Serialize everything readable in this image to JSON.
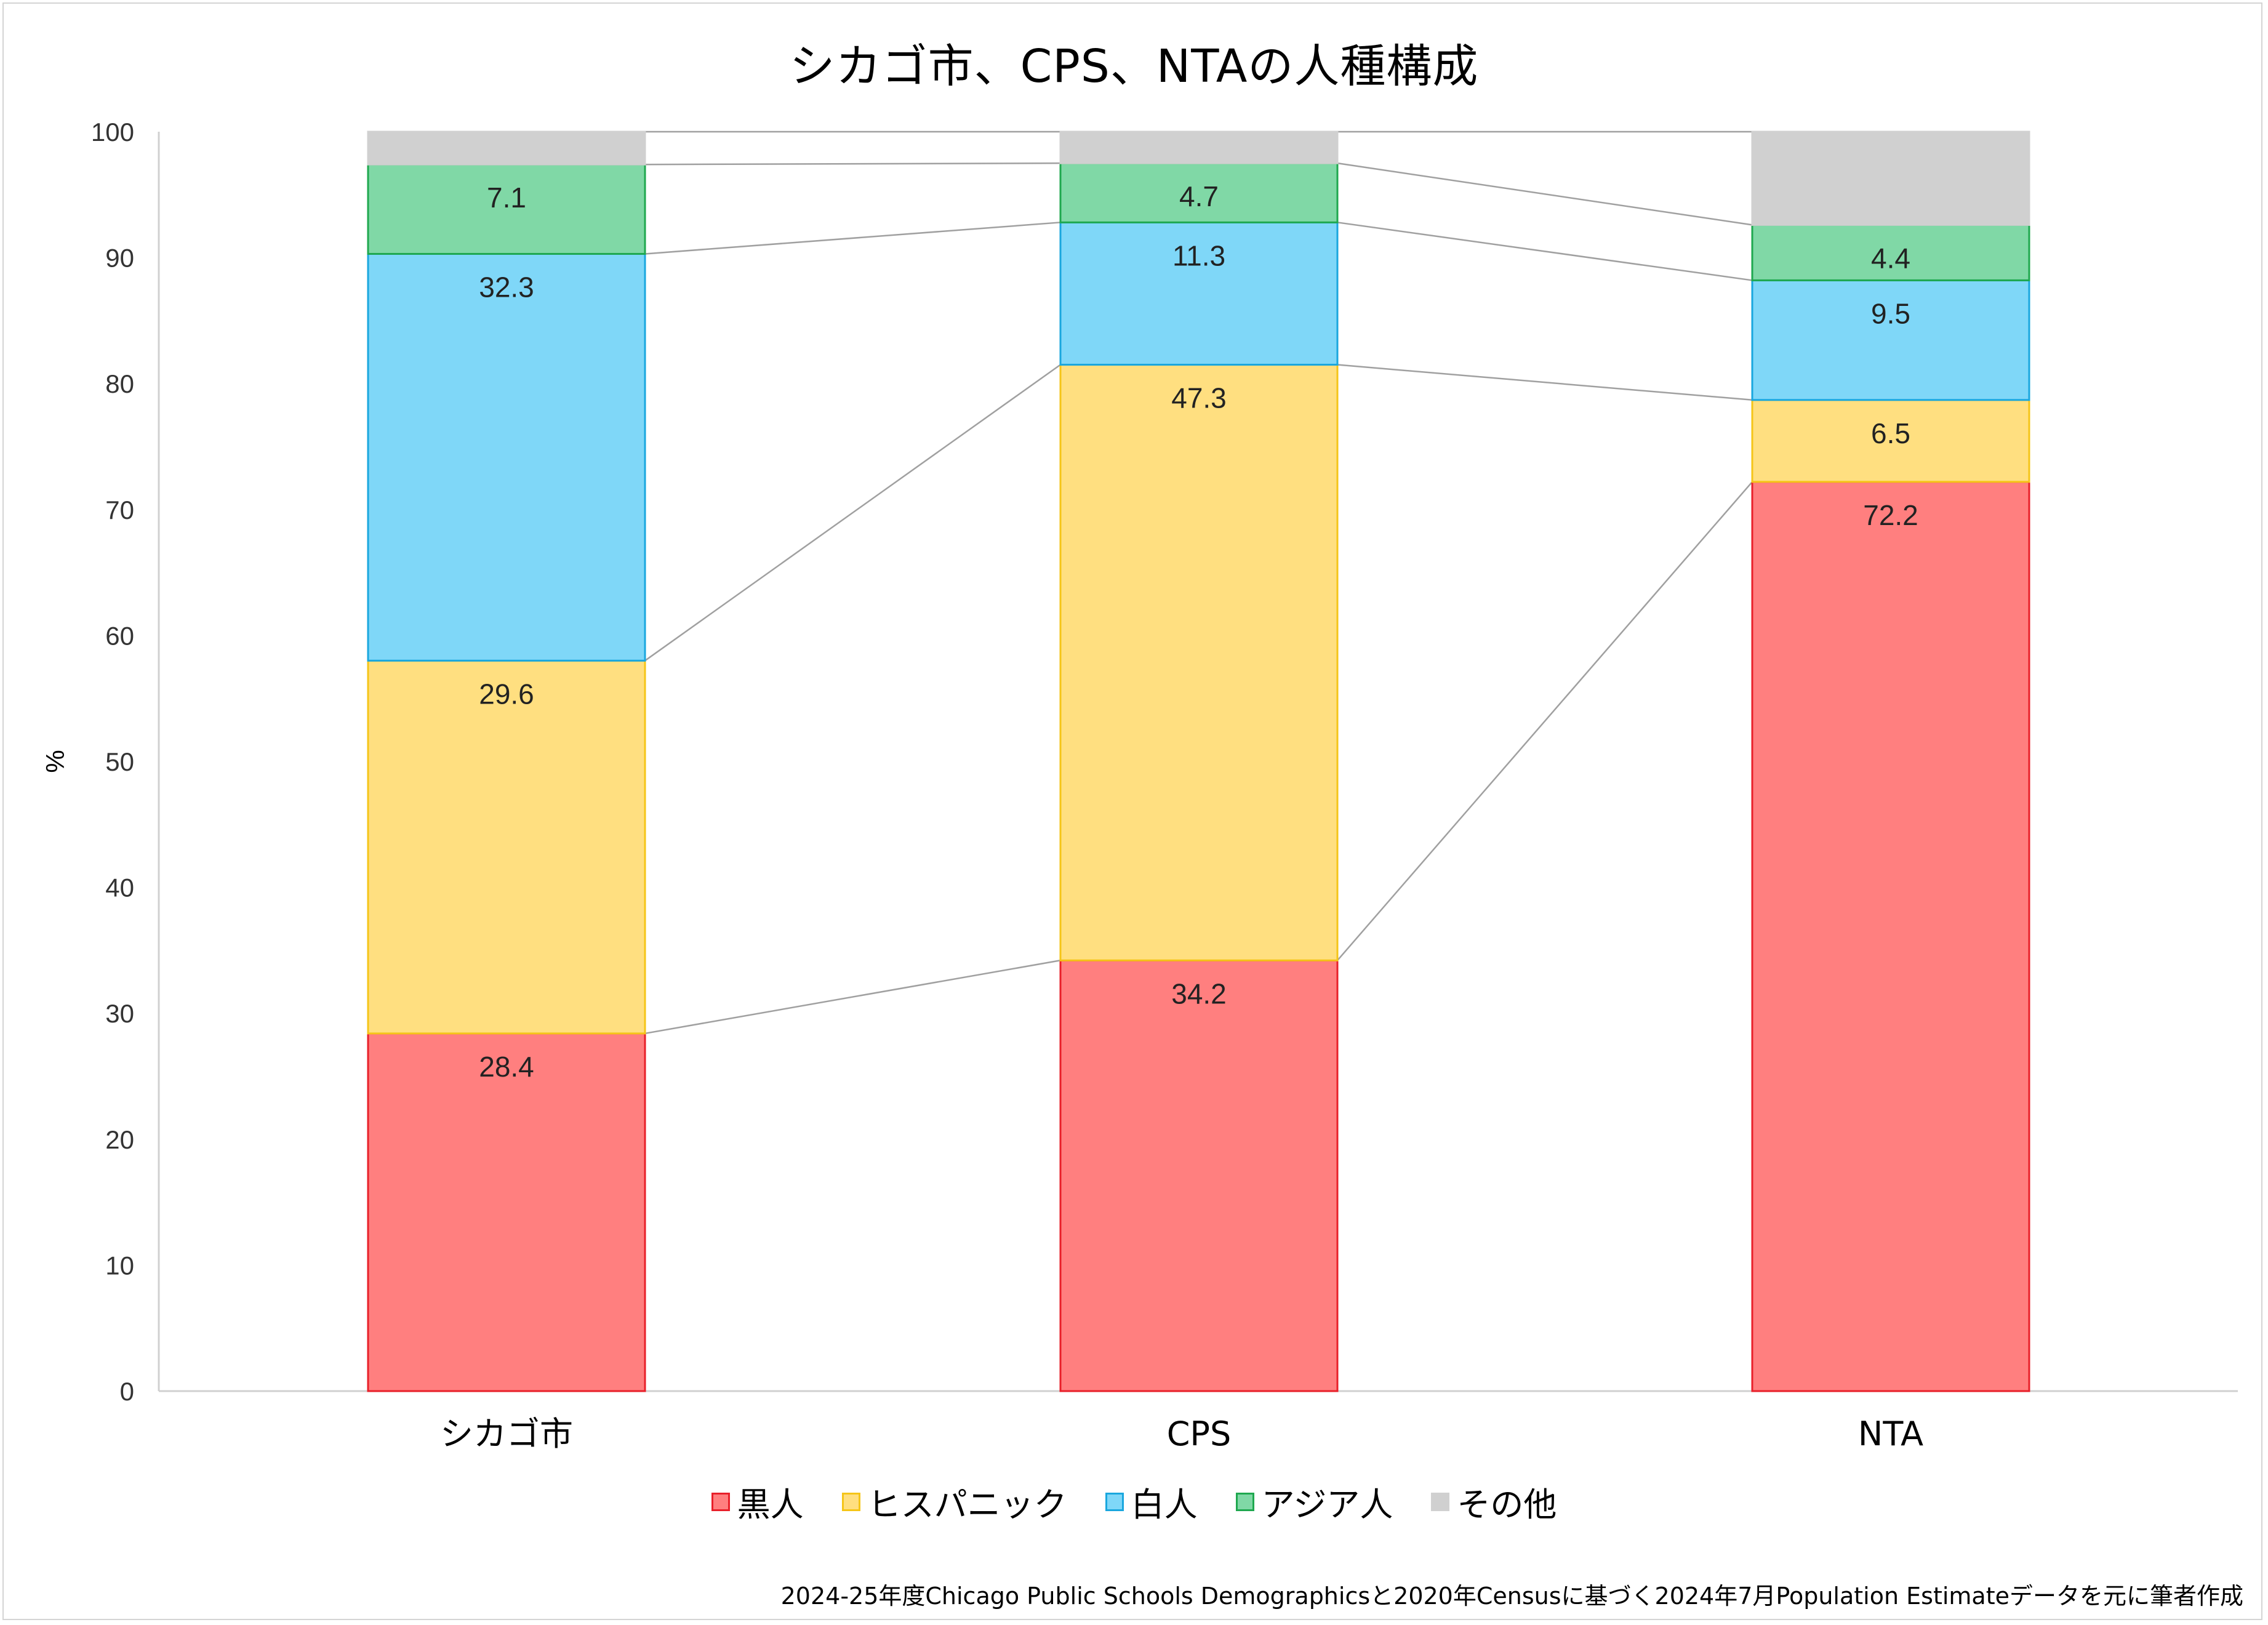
{
  "chart_data": {
    "type": "bar",
    "stacked": true,
    "title": "シカゴ市、CPS、NTAの人種構成",
    "ylabel": "%",
    "xlabel": "",
    "ylim": [
      0,
      100
    ],
    "yticks": [
      0,
      10,
      20,
      30,
      40,
      50,
      60,
      70,
      80,
      90,
      100
    ],
    "categories": [
      "シカゴ市",
      "CPS",
      "NTA"
    ],
    "series": [
      {
        "name": "黒人",
        "values": [
          28.4,
          34.2,
          72.2
        ],
        "color": "#FF7F7F",
        "border": "#E8202A"
      },
      {
        "name": "ヒスパニック",
        "values": [
          29.6,
          47.3,
          6.5
        ],
        "color": "#FFDF80",
        "border": "#F5C518"
      },
      {
        "name": "白人",
        "values": [
          32.3,
          11.3,
          9.5
        ],
        "color": "#7FD7F8",
        "border": "#1AA7DE"
      },
      {
        "name": "アジア人",
        "values": [
          7.1,
          4.7,
          4.4
        ],
        "color": "#80D8A6",
        "border": "#1FA84F"
      },
      {
        "name": "その他",
        "values": [
          2.6,
          2.5,
          7.4
        ],
        "color": "#D0D0D0",
        "border": "#D0D0D0",
        "show_label": false
      }
    ],
    "series_lines": true,
    "legend_position": "bottom",
    "grid": false
  },
  "footer": {
    "source": "2024-25年度Chicago Public Schools Demographicsと2020年Censusに基づく2024年7月Population Estimateデータを元に筆者作成"
  }
}
